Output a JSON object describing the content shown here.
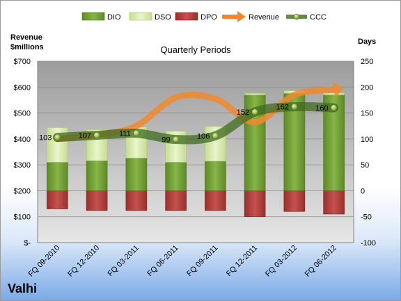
{
  "company": "Valhi",
  "chart_data": {
    "type": "bar",
    "title": "Quarterly Periods",
    "y_left_label": [
      "Revenue",
      "$millions"
    ],
    "y_right_label": "Days",
    "categories": [
      "FQ 09-2010",
      "FQ 12-2010",
      "FQ 03-2011",
      "FQ 06-2011",
      "FQ 09-2011",
      "FQ 12-2011",
      "FQ 03-2012",
      "FQ 06-2012"
    ],
    "y_left_ticks": [
      "$-",
      "$100",
      "$200",
      "$300",
      "$400",
      "$500",
      "$600",
      "$700"
    ],
    "y_right_ticks": [
      "-100",
      "-50",
      "0",
      "50",
      "100",
      "150",
      "200",
      "250"
    ],
    "ylim_left": [
      0,
      700
    ],
    "ylim_right": [
      -100,
      250
    ],
    "legend": [
      "DIO",
      "DSO",
      "DPO",
      "Revenue",
      "CCC"
    ],
    "legend_position": "top",
    "grid": true,
    "colors": {
      "dio": "#77a33a",
      "dso": "#d9ebb0",
      "dpo": "#c0504d",
      "revenue": "#f0892e",
      "ccc": "#3f6b1f"
    },
    "series": [
      {
        "name": "DIO",
        "values": [
          55,
          58,
          63,
          55,
          57,
          185,
          188,
          185
        ]
      },
      {
        "name": "DSO",
        "values": [
          67,
          60,
          60,
          60,
          67,
          3,
          5,
          4
        ]
      },
      {
        "name": "DPO",
        "values": [
          -35,
          -38,
          -38,
          -38,
          -38,
          -50,
          -40,
          -45
        ]
      },
      {
        "name": "Revenue",
        "values": [
          400,
          415,
          450,
          560,
          555,
          465,
          570,
          590
        ]
      },
      {
        "name": "CCC",
        "values": [
          103,
          107,
          111,
          99,
          106,
          152,
          162,
          160
        ]
      }
    ],
    "ccc_labels": [
      "103",
      "107",
      "111",
      "99",
      "106",
      "152",
      "162",
      "160"
    ]
  }
}
